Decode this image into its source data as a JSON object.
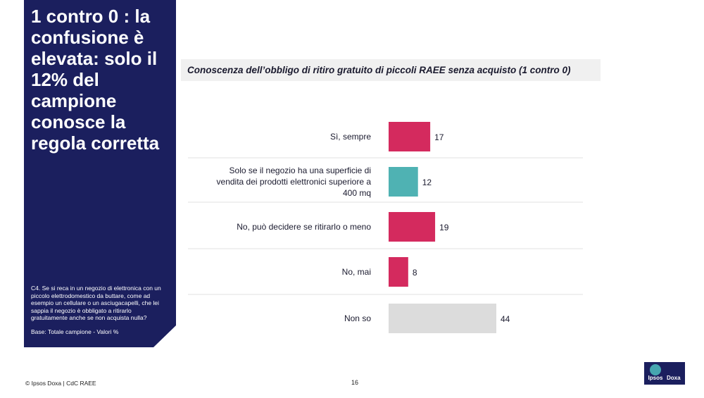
{
  "left_panel": {
    "headline": "1 contro 0 : la confusione è elevata: solo il 12% del campione conosce la regola corretta",
    "question": "C4. Se si reca in un negozio di elettronica con un piccolo elettrodomestico da buttare, come ad esempio un cellulare o un asciugacapelli, che lei sappia il negozio è obbligato a ritirarlo gratuitamente anche se non acquista nulla?",
    "base": "Base: Totale campione - Valori %"
  },
  "colors": {
    "panel": "#1b1f5e",
    "magenta": "#d42a5e",
    "teal": "#4fb2b3",
    "grey": "#dcdcdc"
  },
  "chart_data": {
    "type": "bar",
    "orientation": "horizontal",
    "title": "Conoscenza dell’obbligo di ritiro gratuito di piccoli RAEE senza acquisto (1 contro 0)",
    "categories": [
      "Sì, sempre",
      "Solo se il negozio ha una superficie di vendita dei prodotti elettronici superiore a 400 mq",
      "No, può decidere se ritirarlo o meno",
      "No, mai",
      "Non so"
    ],
    "values": [
      17,
      12,
      19,
      8,
      44
    ],
    "bar_colors": [
      "#d42a5e",
      "#4fb2b3",
      "#d42a5e",
      "#d42a5e",
      "#dcdcdc"
    ],
    "xlim": [
      0,
      44
    ],
    "grid": false
  },
  "footer": {
    "source": "© Ipsos Doxa | CdC RAEE",
    "page_number": "16"
  },
  "logo": {
    "left": "Ipsos",
    "right": "Doxa",
    "icon": "ipsos-logo-icon"
  }
}
